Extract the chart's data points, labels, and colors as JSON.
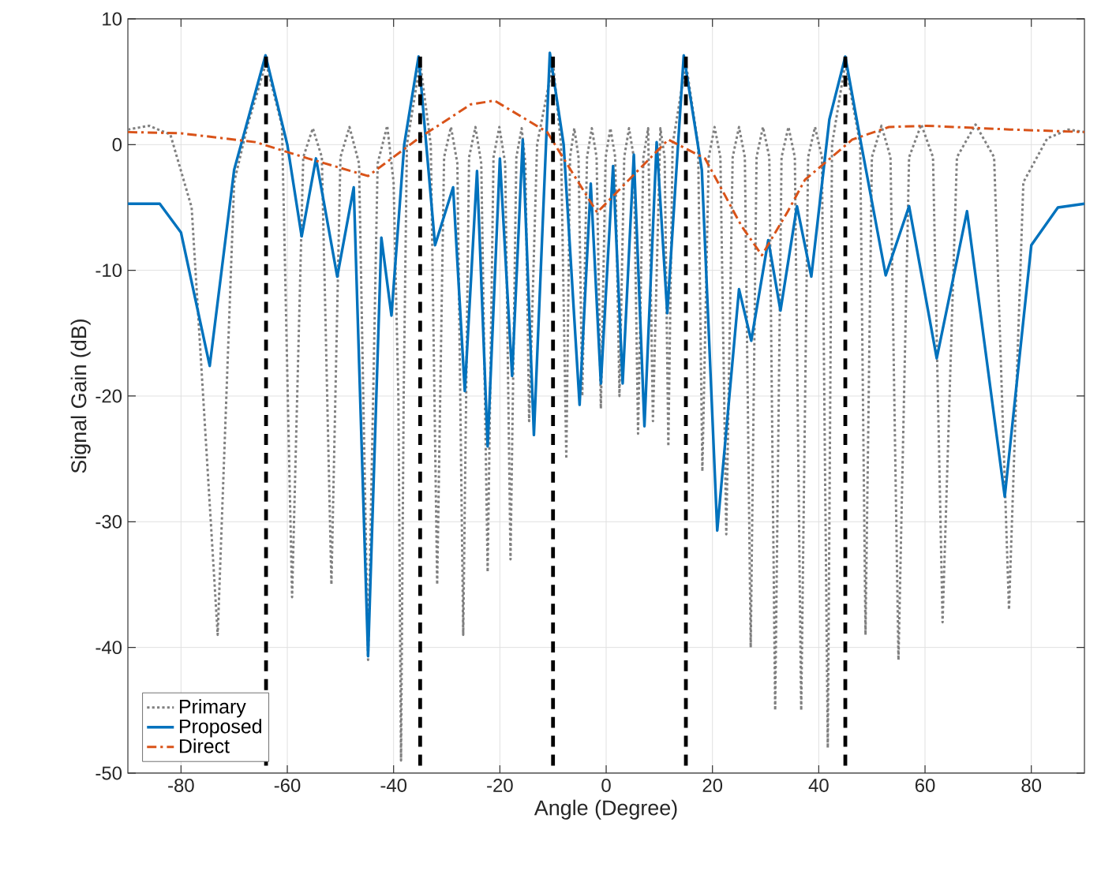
{
  "chart_data": {
    "type": "line",
    "xlabel": "Angle (Degree)",
    "ylabel": "Signal Gain (dB)",
    "xlim": [
      -90,
      90
    ],
    "xticks": [
      -80,
      -60,
      -40,
      -20,
      0,
      20,
      40,
      60,
      80
    ],
    "ylim": [
      -50,
      10
    ],
    "yticks": [
      -50,
      -40,
      -30,
      -20,
      -10,
      0,
      10
    ],
    "grid": true,
    "legend": "bottom left",
    "marker": "none",
    "series": [
      {
        "name": "Primary",
        "color": "#808080",
        "line_style": "dotted",
        "x": [
          -90,
          -86,
          -82,
          -78,
          -73.1,
          -70,
          -67.5,
          -64,
          -61,
          -59.1,
          -57,
          -55.2,
          -53.5,
          -51.7,
          -50,
          -48.3,
          -46.5,
          -44.8,
          -43,
          -41.2,
          -40,
          -39.1,
          -38.6,
          -38.1,
          -37.5,
          -35,
          -33,
          -31.8,
          -30.5,
          -29.2,
          -28,
          -26.9,
          -25.8,
          -24.6,
          -23.5,
          -22.3,
          -21.2,
          -20.1,
          -19,
          -18,
          -16.9,
          -15.9,
          -15.2,
          -14.5,
          -13,
          -10,
          -8.5,
          -7.5,
          -6.8,
          -6,
          -5.2,
          -4.5,
          -3.6,
          -2.7,
          -1.8,
          -1,
          -0.1,
          0.8,
          1.7,
          2.5,
          3.4,
          4.3,
          5.2,
          6,
          7,
          7.9,
          8.8,
          10.2,
          11,
          11.7,
          12.5,
          15,
          17.3,
          18.1,
          19.3,
          20.4,
          21.5,
          22.6,
          23.8,
          25,
          26.1,
          27.2,
          28.3,
          29.5,
          30.7,
          31.8,
          33,
          34.3,
          35.5,
          36.7,
          38,
          39.3,
          40.6,
          41.7,
          42.5,
          45,
          47.8,
          48.8,
          50,
          51.8,
          53.5,
          55,
          57,
          59.3,
          61.5,
          63.3,
          66,
          69.5,
          73,
          75.8,
          78.5,
          83,
          87,
          90
        ],
        "values": [
          1.2,
          1.5,
          0.8,
          -5,
          -39,
          -3,
          1.5,
          6.5,
          1.5,
          -36,
          -1,
          1.3,
          -1,
          -35,
          -1,
          1.4,
          -1.5,
          -41,
          -1.5,
          1.5,
          -3,
          -20,
          -49,
          -20,
          0,
          6.5,
          0,
          -35,
          -1,
          1.4,
          -1.5,
          -39,
          -1,
          1.4,
          -1.5,
          -34,
          -1,
          1.4,
          -1.5,
          -33,
          -1,
          1.3,
          -1.5,
          -22,
          0,
          6.5,
          0,
          -25,
          -1,
          1.3,
          -1,
          -20,
          -1,
          1.3,
          -1,
          -21,
          -1,
          1.3,
          -1,
          -20,
          -1,
          1.3,
          -1,
          -23,
          -1,
          1.3,
          -22,
          1.3,
          -1,
          -24,
          0,
          6.5,
          0,
          -26,
          -1,
          1.4,
          -1,
          -31,
          -1,
          1.4,
          -1,
          -40,
          -1,
          1.4,
          -1,
          -45,
          -1,
          1.4,
          -1,
          -45,
          -1,
          1.4,
          -1,
          -48,
          0,
          6.5,
          0,
          -39,
          -1,
          1.5,
          -1,
          -41,
          -1,
          1.6,
          -1,
          -38,
          -1,
          1.6,
          -1,
          -37,
          -3,
          0.5,
          1.2,
          1.0
        ]
      },
      {
        "name": "Proposed",
        "color": "#0072bd",
        "line_style": "solid",
        "x": [
          -90,
          -84,
          -80,
          -74.6,
          -70,
          -64.1,
          -60,
          -57.3,
          -54.6,
          -50.6,
          -47.5,
          -44.8,
          -42.3,
          -40.4,
          -38,
          -35.3,
          -32.2,
          -28.8,
          -26.6,
          -24.3,
          -22.3,
          -20,
          -17.7,
          -15.7,
          -13.6,
          -10.6,
          -8,
          -5,
          -2.9,
          -1,
          1.3,
          3.1,
          5.2,
          7.2,
          9.5,
          11.5,
          14.6,
          18,
          20.9,
          25,
          27.3,
          30.5,
          32.8,
          35.9,
          38.6,
          42,
          45,
          48,
          52.6,
          57,
          62.2,
          67.9,
          75,
          80,
          85,
          90
        ],
        "values": [
          -4.7,
          -4.7,
          -7,
          -17.6,
          -2,
          7.1,
          0,
          -7.3,
          -1.1,
          -10.5,
          -3.4,
          -40.7,
          -7.4,
          -13.6,
          0,
          7,
          -8,
          -3.4,
          -19.6,
          -2.1,
          -24,
          -1.1,
          -18.4,
          0.4,
          -23.1,
          7.3,
          0,
          -20.7,
          -3.1,
          -19,
          -1.7,
          -19,
          -0.8,
          -22.4,
          0.2,
          -13.4,
          7.1,
          -2,
          -30.7,
          -11.5,
          -15.6,
          -7.6,
          -13.2,
          -4.9,
          -10.5,
          2,
          7,
          0,
          -10.4,
          -4.9,
          -17,
          -5.3,
          -28,
          -8,
          -5,
          -4.7
        ]
      },
      {
        "name": "Direct",
        "color": "#d95319",
        "line_style": "dashdot",
        "x": [
          -90,
          -80,
          -66,
          -56.1,
          -44.8,
          -35.3,
          -25.5,
          -21,
          -11.1,
          -1.7,
          5.2,
          11.7,
          18.6,
          25.5,
          29.3,
          34.2,
          37.4,
          46.3,
          53.2,
          60.2,
          76,
          90
        ],
        "values": [
          1,
          0.9,
          0.2,
          -1.1,
          -2.5,
          0.5,
          3.2,
          3.5,
          1,
          -5.4,
          -2.4,
          0.4,
          -1.1,
          -6.5,
          -8.8,
          -5.3,
          -2.8,
          0.4,
          1.4,
          1.5,
          1.2,
          1
        ]
      },
      {
        "color": "#000000",
        "line_style": "dashed",
        "x": [
          -64,
          -64
        ],
        "values": [
          7,
          -50
        ]
      },
      {
        "color": "#000000",
        "line_style": "dashed",
        "x": [
          -35,
          -35
        ],
        "values": [
          7,
          -50
        ]
      },
      {
        "color": "#000000",
        "line_style": "dashed",
        "x": [
          -10,
          -10
        ],
        "values": [
          7,
          -50
        ]
      },
      {
        "color": "#000000",
        "line_style": "dashed",
        "x": [
          15,
          15
        ],
        "values": [
          7,
          -50
        ]
      },
      {
        "color": "#000000",
        "line_style": "dashed",
        "x": [
          45,
          45
        ],
        "values": [
          7,
          -50
        ]
      }
    ]
  }
}
